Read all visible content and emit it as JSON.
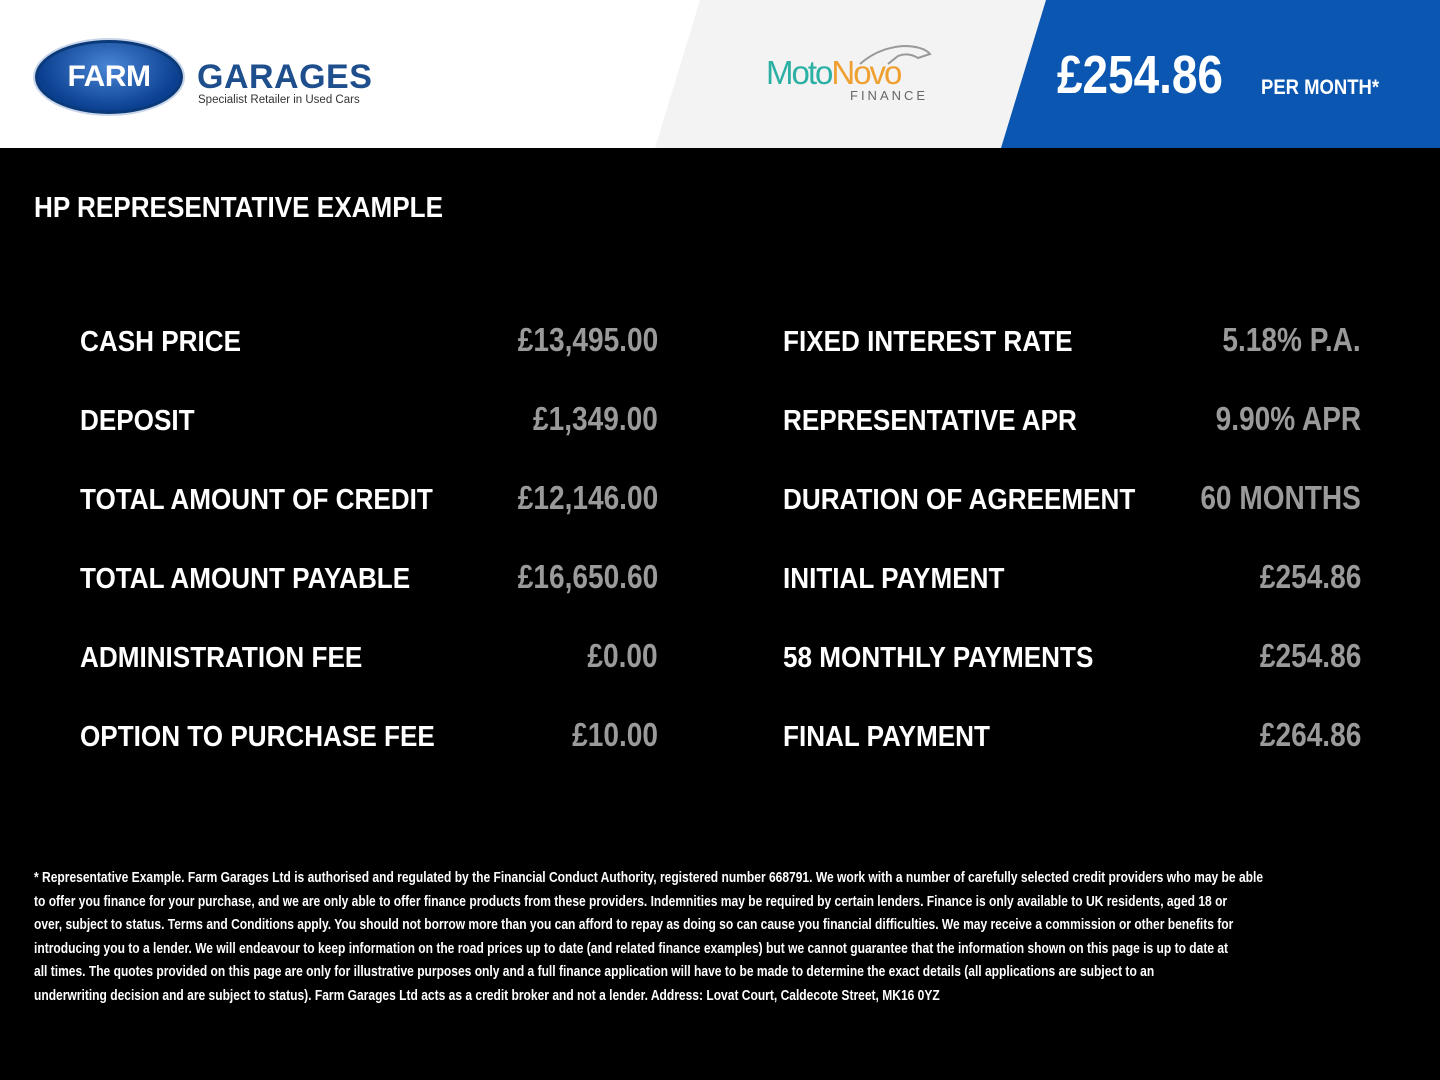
{
  "header": {
    "dealer_logo": {
      "primary": "FARM",
      "secondary": "GARAGES",
      "tagline": "Specialist Retailer in Used Cars"
    },
    "finance_logo": {
      "part1": "Moto",
      "part2": "Novo",
      "sub": "FINANCE"
    },
    "monthly_price": "£254.86",
    "per_month_label": "PER MONTH*",
    "colors": {
      "blue": "#0a56b0",
      "teal": "#2bb0a4",
      "orange": "#f0a030"
    }
  },
  "title": "HP REPRESENTATIVE EXAMPLE",
  "left_rows": [
    {
      "label": "CASH PRICE",
      "value": "£13,495.00"
    },
    {
      "label": "DEPOSIT",
      "value": "£1,349.00"
    },
    {
      "label": "TOTAL AMOUNT OF CREDIT",
      "value": "£12,146.00"
    },
    {
      "label": "TOTAL AMOUNT PAYABLE",
      "value": "£16,650.60"
    },
    {
      "label": "ADMINISTRATION FEE",
      "value": "£0.00"
    },
    {
      "label": "OPTION TO PURCHASE FEE",
      "value": "£10.00"
    }
  ],
  "right_rows": [
    {
      "label": "FIXED INTEREST RATE",
      "value": "5.18% P.A."
    },
    {
      "label": "REPRESENTATIVE APR",
      "value": "9.90% APR"
    },
    {
      "label": "DURATION OF AGREEMENT",
      "value": "60 MONTHS"
    },
    {
      "label": "INITIAL PAYMENT",
      "value": "£254.86"
    },
    {
      "label": "58 MONTHLY PAYMENTS",
      "value": "£254.86"
    },
    {
      "label": "FINAL PAYMENT",
      "value": "£264.86"
    }
  ],
  "disclaimer_lines": [
    "* Representative Example. Farm Garages Ltd is authorised and regulated by the Financial Conduct Authority, registered number 668791. We work with a number of carefully selected credit providers who may be able",
    "to offer you finance for your purchase, and we are only able to offer finance products from these providers. Indemnities may be required by certain lenders. Finance is only available to UK residents, aged 18 or",
    "over, subject to status. Terms and Conditions apply. You should not borrow more than you can afford to repay as doing so can cause you financial difficulties. We may receive a commission or other benefits for",
    "introducing you to a lender. We will endeavour to keep information on the road prices up to date (and related finance examples) but we cannot guarantee that the information shown on this page is up to date at",
    "all times. The quotes provided on this page are only for illustrative purposes only and a full finance application will have to be made to determine the exact details (all applications are subject to an",
    "underwriting decision and are subject to status). Farm Garages Ltd acts as a credit broker and not a lender. Address: Lovat Court, Caldecote Street, MK16 0YZ"
  ]
}
